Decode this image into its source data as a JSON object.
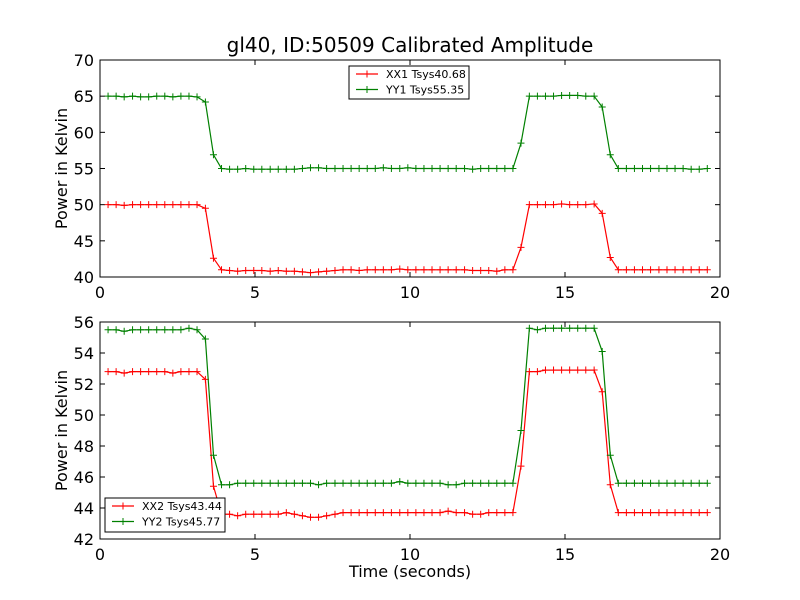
{
  "title": "gl40, ID:50509 Calibrated Amplitude",
  "chart_data": [
    {
      "type": "line",
      "xlabel": "",
      "ylabel": "Power in Kelvin",
      "xlim": [
        0,
        20
      ],
      "ylim": [
        40,
        70
      ],
      "xticks": [
        "0",
        "5",
        "10",
        "15",
        "20"
      ],
      "yticks": [
        "40",
        "45",
        "50",
        "55",
        "60",
        "65",
        "70"
      ],
      "legend_position": "top-center",
      "series": [
        {
          "name": "XX1 Tsys40.68",
          "color": "#ff0000",
          "marker": "+",
          "x": [
            0.26,
            0.52,
            0.78,
            1.05,
            1.31,
            1.57,
            1.83,
            2.09,
            2.35,
            2.61,
            2.87,
            3.13,
            3.4,
            3.66,
            3.92,
            4.18,
            4.44,
            4.7,
            4.96,
            5.22,
            5.49,
            5.75,
            6.01,
            6.27,
            6.53,
            6.79,
            7.05,
            7.31,
            7.58,
            7.84,
            8.1,
            8.36,
            8.62,
            8.88,
            9.14,
            9.4,
            9.67,
            9.93,
            10.19,
            10.45,
            10.71,
            10.97,
            11.23,
            11.49,
            11.76,
            12.02,
            12.28,
            12.54,
            12.8,
            13.06,
            13.32,
            13.58,
            13.85,
            14.11,
            14.37,
            14.63,
            14.89,
            15.15,
            15.41,
            15.67,
            15.94,
            16.2,
            16.46,
            16.72,
            16.98,
            17.24,
            17.5,
            17.76,
            18.03,
            18.29,
            18.55,
            18.81,
            19.07,
            19.33,
            19.59
          ],
          "values": [
            50.0,
            50.0,
            49.9,
            50.0,
            50.0,
            50.0,
            50.0,
            50.0,
            50.0,
            50.0,
            50.0,
            50.0,
            49.5,
            42.6,
            41.0,
            40.9,
            40.8,
            40.9,
            40.9,
            40.9,
            40.8,
            40.9,
            40.8,
            40.8,
            40.7,
            40.6,
            40.7,
            40.8,
            40.9,
            41.0,
            41.0,
            40.9,
            41.0,
            41.0,
            41.0,
            41.0,
            41.1,
            41.0,
            41.0,
            41.0,
            41.0,
            41.0,
            41.0,
            41.0,
            41.0,
            40.9,
            40.9,
            40.9,
            40.8,
            41.0,
            41.0,
            44.1,
            50.0,
            50.0,
            50.0,
            50.0,
            50.1,
            50.0,
            50.0,
            50.0,
            50.1,
            48.8,
            42.7,
            41.0,
            41.0,
            41.0,
            41.0,
            41.0,
            41.0,
            41.0,
            41.0,
            41.0,
            41.0,
            41.0,
            41.0
          ]
        },
        {
          "name": "YY1 Tsys55.35",
          "color": "#008000",
          "marker": "+",
          "x": [
            0.26,
            0.52,
            0.78,
            1.05,
            1.31,
            1.57,
            1.83,
            2.09,
            2.35,
            2.61,
            2.87,
            3.13,
            3.4,
            3.66,
            3.92,
            4.18,
            4.44,
            4.7,
            4.96,
            5.22,
            5.49,
            5.75,
            6.01,
            6.27,
            6.53,
            6.79,
            7.05,
            7.31,
            7.58,
            7.84,
            8.1,
            8.36,
            8.62,
            8.88,
            9.14,
            9.4,
            9.67,
            9.93,
            10.19,
            10.45,
            10.71,
            10.97,
            11.23,
            11.49,
            11.76,
            12.02,
            12.28,
            12.54,
            12.8,
            13.06,
            13.32,
            13.58,
            13.85,
            14.11,
            14.37,
            14.63,
            14.89,
            15.15,
            15.41,
            15.67,
            15.94,
            16.2,
            16.46,
            16.72,
            16.98,
            17.24,
            17.5,
            17.76,
            18.03,
            18.29,
            18.55,
            18.81,
            19.07,
            19.33,
            19.59
          ],
          "values": [
            65.0,
            65.0,
            64.9,
            65.0,
            64.9,
            64.9,
            65.0,
            65.0,
            64.9,
            65.0,
            65.0,
            64.9,
            64.2,
            56.9,
            55.0,
            54.9,
            54.9,
            55.0,
            54.9,
            54.9,
            54.9,
            54.9,
            54.9,
            54.9,
            55.0,
            55.1,
            55.1,
            55.0,
            55.0,
            55.0,
            55.0,
            55.0,
            55.0,
            55.0,
            55.1,
            55.0,
            55.0,
            55.1,
            55.0,
            55.0,
            55.0,
            55.0,
            55.0,
            55.0,
            55.0,
            54.9,
            55.0,
            55.0,
            55.0,
            55.0,
            55.0,
            58.5,
            65.0,
            65.0,
            65.0,
            65.0,
            65.1,
            65.1,
            65.1,
            65.0,
            65.0,
            63.5,
            56.9,
            55.0,
            55.0,
            55.0,
            55.0,
            55.0,
            55.0,
            55.0,
            55.0,
            55.0,
            54.9,
            54.9,
            55.0
          ]
        }
      ]
    },
    {
      "type": "line",
      "xlabel": "Time (seconds)",
      "ylabel": "Power in Kelvin",
      "xlim": [
        0,
        20
      ],
      "ylim": [
        42,
        56
      ],
      "xticks": [
        "0",
        "5",
        "10",
        "15",
        "20"
      ],
      "yticks": [
        "42",
        "44",
        "46",
        "48",
        "50",
        "52",
        "54",
        "56"
      ],
      "legend_position": "lower-left",
      "series": [
        {
          "name": "XX2 Tsys43.44",
          "color": "#ff0000",
          "marker": "+",
          "x": [
            0.26,
            0.52,
            0.78,
            1.05,
            1.31,
            1.57,
            1.83,
            2.09,
            2.35,
            2.61,
            2.87,
            3.13,
            3.4,
            3.66,
            3.92,
            4.18,
            4.44,
            4.7,
            4.96,
            5.22,
            5.49,
            5.75,
            6.01,
            6.27,
            6.53,
            6.79,
            7.05,
            7.31,
            7.58,
            7.84,
            8.1,
            8.36,
            8.62,
            8.88,
            9.14,
            9.4,
            9.67,
            9.93,
            10.19,
            10.45,
            10.71,
            10.97,
            11.23,
            11.49,
            11.76,
            12.02,
            12.28,
            12.54,
            12.8,
            13.06,
            13.32,
            13.58,
            13.85,
            14.11,
            14.37,
            14.63,
            14.89,
            15.15,
            15.41,
            15.67,
            15.94,
            16.2,
            16.46,
            16.72,
            16.98,
            17.24,
            17.5,
            17.76,
            18.03,
            18.29,
            18.55,
            18.81,
            19.07,
            19.33,
            19.59
          ],
          "values": [
            52.8,
            52.8,
            52.7,
            52.8,
            52.8,
            52.8,
            52.8,
            52.8,
            52.7,
            52.8,
            52.8,
            52.8,
            52.3,
            45.4,
            43.6,
            43.6,
            43.5,
            43.6,
            43.6,
            43.6,
            43.6,
            43.6,
            43.7,
            43.6,
            43.5,
            43.4,
            43.4,
            43.5,
            43.6,
            43.7,
            43.7,
            43.7,
            43.7,
            43.7,
            43.7,
            43.7,
            43.7,
            43.7,
            43.7,
            43.7,
            43.7,
            43.7,
            43.8,
            43.7,
            43.7,
            43.6,
            43.6,
            43.7,
            43.7,
            43.7,
            43.7,
            46.7,
            52.8,
            52.8,
            52.9,
            52.9,
            52.9,
            52.9,
            52.9,
            52.9,
            52.9,
            51.5,
            45.5,
            43.7,
            43.7,
            43.7,
            43.7,
            43.7,
            43.7,
            43.7,
            43.7,
            43.7,
            43.7,
            43.7,
            43.7
          ]
        },
        {
          "name": "YY2 Tsys45.77",
          "color": "#008000",
          "marker": "+",
          "x": [
            0.26,
            0.52,
            0.78,
            1.05,
            1.31,
            1.57,
            1.83,
            2.09,
            2.35,
            2.61,
            2.87,
            3.13,
            3.4,
            3.66,
            3.92,
            4.18,
            4.44,
            4.7,
            4.96,
            5.22,
            5.49,
            5.75,
            6.01,
            6.27,
            6.53,
            6.79,
            7.05,
            7.31,
            7.58,
            7.84,
            8.1,
            8.36,
            8.62,
            8.88,
            9.14,
            9.4,
            9.67,
            9.93,
            10.19,
            10.45,
            10.71,
            10.97,
            11.23,
            11.49,
            11.76,
            12.02,
            12.28,
            12.54,
            12.8,
            13.06,
            13.32,
            13.58,
            13.85,
            14.11,
            14.37,
            14.63,
            14.89,
            15.15,
            15.41,
            15.67,
            15.94,
            16.2,
            16.46,
            16.72,
            16.98,
            17.24,
            17.5,
            17.76,
            18.03,
            18.29,
            18.55,
            18.81,
            19.07,
            19.33,
            19.59
          ],
          "values": [
            55.5,
            55.5,
            55.4,
            55.5,
            55.5,
            55.5,
            55.5,
            55.5,
            55.5,
            55.5,
            55.6,
            55.5,
            54.9,
            47.4,
            45.5,
            45.5,
            45.6,
            45.6,
            45.6,
            45.6,
            45.6,
            45.6,
            45.6,
            45.6,
            45.6,
            45.6,
            45.5,
            45.6,
            45.6,
            45.6,
            45.6,
            45.6,
            45.6,
            45.6,
            45.6,
            45.6,
            45.7,
            45.6,
            45.6,
            45.6,
            45.6,
            45.6,
            45.5,
            45.5,
            45.6,
            45.6,
            45.6,
            45.6,
            45.6,
            45.6,
            45.6,
            49.0,
            55.6,
            55.5,
            55.6,
            55.6,
            55.6,
            55.6,
            55.6,
            55.6,
            55.6,
            54.1,
            47.4,
            45.6,
            45.6,
            45.6,
            45.6,
            45.6,
            45.6,
            45.6,
            45.6,
            45.6,
            45.6,
            45.6,
            45.6
          ]
        }
      ]
    }
  ]
}
